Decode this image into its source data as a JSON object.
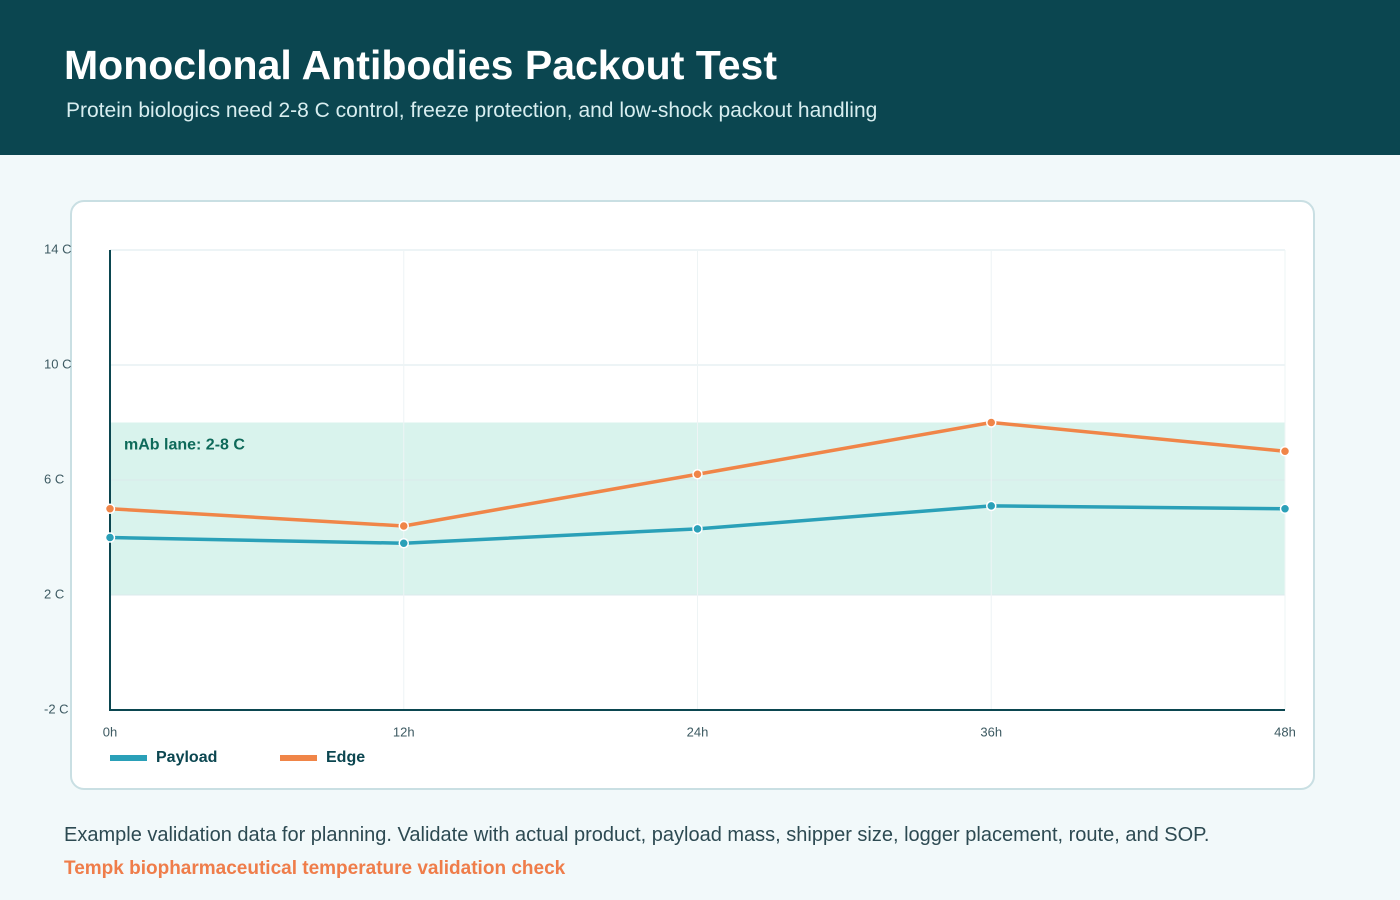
{
  "header": {
    "title": "Monoclonal Antibodies Packout Test",
    "subtitle": "Protein biologics need 2-8 C control, freeze protection, and low-shock packout handling"
  },
  "chart_data": {
    "type": "line",
    "categories": [
      "0h",
      "12h",
      "24h",
      "36h",
      "48h"
    ],
    "series": [
      {
        "name": "Payload",
        "color": "#2aa0b8",
        "values": [
          4.0,
          3.8,
          4.3,
          5.1,
          5.0
        ]
      },
      {
        "name": "Edge",
        "color": "#f08548",
        "values": [
          5.0,
          4.4,
          6.2,
          8.0,
          7.0
        ]
      }
    ],
    "ylim": [
      -2,
      14
    ],
    "yticks": [
      {
        "value": -2,
        "label": "-2 C"
      },
      {
        "value": 2,
        "label": "2 C"
      },
      {
        "value": 6,
        "label": "6 C"
      },
      {
        "value": 10,
        "label": "10 C"
      },
      {
        "value": 14,
        "label": "14 C"
      }
    ],
    "band": {
      "range": [
        2,
        8
      ],
      "label": "mAb lane: 2-8 C",
      "color": "#d9f3ed"
    },
    "grid": true
  },
  "footer": {
    "note": "Example validation data for planning. Validate with actual product, payload mass, shipper size, logger placement, route, and SOP.",
    "source": "Tempk biopharmaceutical temperature validation check"
  }
}
